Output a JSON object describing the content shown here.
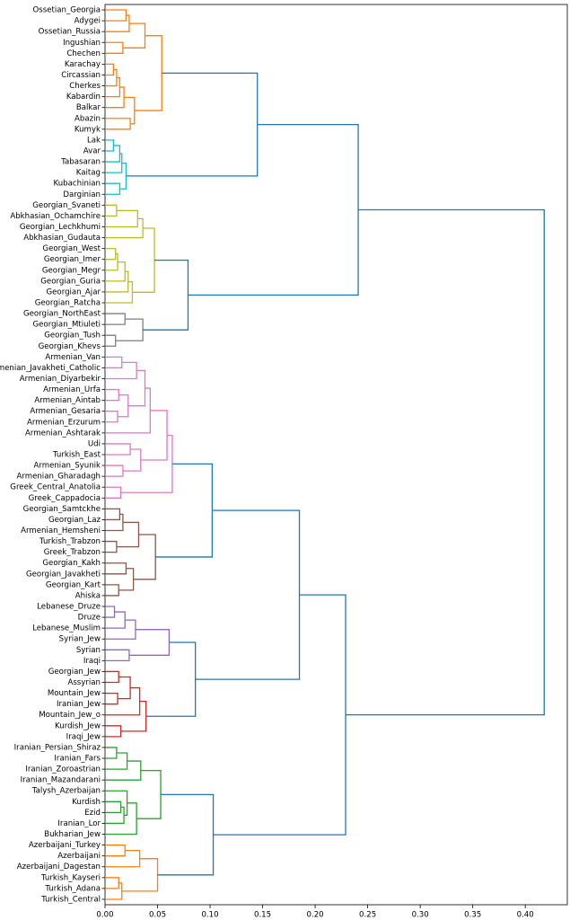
{
  "chart_data": {
    "type": "dendrogram",
    "orientation": "right",
    "xlim": [
      0,
      0.44
    ],
    "xticks": [
      {
        "value": 0,
        "label": "0.00"
      },
      {
        "value": 0.05,
        "label": "0.05"
      },
      {
        "value": 0.1,
        "label": "0.10"
      },
      {
        "value": 0.15,
        "label": "0.15"
      },
      {
        "value": 0.2,
        "label": "0.20"
      },
      {
        "value": 0.25,
        "label": "0.25"
      },
      {
        "value": 0.3,
        "label": "0.30"
      },
      {
        "value": 0.35,
        "label": "0.35"
      },
      {
        "value": 0.4,
        "label": "0.40"
      }
    ],
    "tree": {
      "height": 0.418,
      "color": "#1f77b4",
      "children": [
        {
          "height": 0.241,
          "children": [
            {
              "height": 0.145,
              "children": [
                {
                  "height": 0.054,
                  "color": "#ff7f0e",
                  "children": [
                    {
                      "height": 0.038,
                      "children": [
                        {
                          "height": 0.023,
                          "children": [
                            {
                              "height": 0.02,
                              "children": [
                                "Ossetian_Georgia",
                                "Adygei"
                              ]
                            },
                            "Ossetian_Russia"
                          ]
                        },
                        {
                          "height": 0.017,
                          "children": [
                            "Ingushian",
                            "Chechen"
                          ]
                        }
                      ]
                    },
                    {
                      "height": 0.028,
                      "children": [
                        {
                          "height": 0.018,
                          "children": [
                            {
                              "height": 0.014,
                              "children": [
                                {
                                  "height": 0.011,
                                  "children": [
                                    {
                                      "height": 0.008,
                                      "children": [
                                        "Karachay",
                                        "Circassian"
                                      ]
                                    },
                                    "Cherkes"
                                  ]
                                },
                                "Kabardin"
                              ]
                            },
                            "Balkar"
                          ]
                        },
                        {
                          "height": 0.024,
                          "children": [
                            "Abazin",
                            "Kumyk"
                          ]
                        }
                      ]
                    }
                  ]
                },
                {
                  "height": 0.02,
                  "color": "#17becf",
                  "children": [
                    {
                      "height": 0.016,
                      "children": [
                        {
                          "height": 0.014,
                          "children": [
                            {
                              "height": 0.008,
                              "children": [
                                "Lak",
                                "Avar"
                              ]
                            },
                            "Tabasaran"
                          ]
                        },
                        "Kaitag"
                      ]
                    },
                    {
                      "height": 0.014,
                      "children": [
                        "Kubachinian",
                        "Darginian"
                      ]
                    }
                  ]
                }
              ]
            },
            {
              "height": 0.079,
              "children": [
                {
                  "height": 0.047,
                  "color": "#bcbd22",
                  "children": [
                    {
                      "height": 0.036,
                      "children": [
                        {
                          "height": 0.031,
                          "children": [
                            {
                              "height": 0.011,
                              "children": [
                                "Georgian_Svaneti",
                                "Abkhasian_Ochamchire"
                              ]
                            },
                            "Georgian_Lechkhumi"
                          ]
                        },
                        "Abkhasian_Gudauta"
                      ]
                    },
                    {
                      "height": 0.026,
                      "children": [
                        {
                          "height": 0.022,
                          "children": [
                            {
                              "height": 0.019,
                              "children": [
                                {
                                  "height": 0.012,
                                  "children": [
                                    {
                                      "height": 0.01,
                                      "children": [
                                        "Georgian_West",
                                        "Georgian_Imer"
                                      ]
                                    },
                                    "Georgian_Megr"
                                  ]
                                },
                                "Georgian_Guria"
                              ]
                            },
                            "Georgian_Ajar"
                          ]
                        },
                        "Georgian_Ratcha"
                      ]
                    }
                  ]
                },
                {
                  "height": 0.036,
                  "color": "#7f7f7f",
                  "children": [
                    {
                      "height": 0.019,
                      "children": [
                        "Georgian_NorthEast",
                        "Georgian_Mtiuleti"
                      ]
                    },
                    {
                      "height": 0.01,
                      "children": [
                        "Georgian_Tush",
                        "Georgian_Khevs"
                      ]
                    }
                  ]
                }
              ]
            }
          ]
        },
        {
          "height": 0.229,
          "children": [
            {
              "height": 0.185,
              "children": [
                {
                  "height": 0.102,
                  "children": [
                    {
                      "height": 0.064,
                      "color": "#e377c2",
                      "children": [
                        {
                          "height": 0.059,
                          "children": [
                            {
                              "height": 0.043,
                              "children": [
                                {
                                  "height": 0.038,
                                  "children": [
                                    {
                                      "height": 0.03,
                                      "children": [
                                        {
                                          "height": 0.016,
                                          "children": [
                                            "Armenian_Van",
                                            "Armenian_Javakheti_Catholic"
                                          ]
                                        },
                                        "Armenian_Diyarbekir"
                                      ]
                                    },
                                    {
                                      "height": 0.022,
                                      "children": [
                                        {
                                          "height": 0.013,
                                          "children": [
                                            "Armenian_Urfa",
                                            "Armenian_Aintab"
                                          ]
                                        },
                                        {
                                          "height": 0.012,
                                          "children": [
                                            "Armenian_Gesaria",
                                            "Armenian_Erzurum"
                                          ]
                                        }
                                      ]
                                    }
                                  ]
                                },
                                "Armenian_Ashtarak"
                              ]
                            },
                            {
                              "height": 0.034,
                              "children": [
                                {
                                  "height": 0.024,
                                  "children": [
                                    "Udi",
                                    "Turkish_East"
                                  ]
                                },
                                {
                                  "height": 0.017,
                                  "children": [
                                    "Armenian_Syunik",
                                    "Armenian_Gharadagh"
                                  ]
                                }
                              ]
                            }
                          ]
                        },
                        {
                          "height": 0.015,
                          "children": [
                            "Greek_Central_Anatolia",
                            "Greek_Cappadocia"
                          ]
                        }
                      ]
                    },
                    {
                      "height": 0.048,
                      "color": "#8c564b",
                      "children": [
                        {
                          "height": 0.032,
                          "children": [
                            {
                              "height": 0.017,
                              "children": [
                                {
                                  "height": 0.014,
                                  "children": [
                                    "Georgian_Samtckhe",
                                    "Georgian_Laz"
                                  ]
                                },
                                "Armenian_Hemsheni"
                              ]
                            },
                            {
                              "height": 0.011,
                              "children": [
                                "Turkish_Trabzon",
                                "Greek_Trabzon"
                              ]
                            }
                          ]
                        },
                        {
                          "height": 0.027,
                          "children": [
                            {
                              "height": 0.02,
                              "children": [
                                "Georgian_Kakh",
                                "Georgian_Javakheti"
                              ]
                            },
                            {
                              "height": 0.013,
                              "children": [
                                "Georgian_Kart",
                                "Ahiska"
                              ]
                            }
                          ]
                        }
                      ]
                    }
                  ]
                },
                {
                  "height": 0.086,
                  "children": [
                    {
                      "height": 0.061,
                      "color": "#9467bd",
                      "children": [
                        {
                          "height": 0.029,
                          "children": [
                            {
                              "height": 0.019,
                              "children": [
                                {
                                  "height": 0.009,
                                  "children": [
                                    "Lebanese_Druze",
                                    "Druze"
                                  ]
                                },
                                "Lebanese_Muslim"
                              ]
                            },
                            "Syrian_Jew"
                          ]
                        },
                        {
                          "height": 0.023,
                          "children": [
                            "Syrian",
                            "Iraqi"
                          ]
                        }
                      ]
                    },
                    {
                      "height": 0.039,
                      "color": "#d62728",
                      "children": [
                        {
                          "height": 0.033,
                          "children": [
                            {
                              "height": 0.024,
                              "children": [
                                {
                                  "height": 0.013,
                                  "children": [
                                    "Georgian_Jew",
                                    "Assyrian"
                                  ]
                                },
                                {
                                  "height": 0.012,
                                  "children": [
                                    "Mountain_Jew",
                                    "Iranian_Jew"
                                  ]
                                }
                              ]
                            },
                            "Mountain_Jew_o"
                          ]
                        },
                        {
                          "height": 0.015,
                          "children": [
                            "Kurdish_Jew",
                            "Iraqi_Jew"
                          ]
                        }
                      ]
                    }
                  ]
                }
              ]
            },
            {
              "height": 0.103,
              "children": [
                {
                  "height": 0.053,
                  "color": "#2ca02c",
                  "children": [
                    {
                      "height": 0.034,
                      "children": [
                        {
                          "height": 0.021,
                          "children": [
                            {
                              "height": 0.011,
                              "children": [
                                "Iranian_Persian_Shiraz",
                                "Iranian_Fars"
                              ]
                            },
                            "Iranian_Zoroastrian"
                          ]
                        },
                        "Iranian_Mazandarani"
                      ]
                    },
                    {
                      "height": 0.03,
                      "children": [
                        {
                          "height": 0.021,
                          "children": [
                            "Talysh_Azerbaijan",
                            {
                              "height": 0.018,
                              "children": [
                                {
                                  "height": 0.015,
                                  "children": [
                                    "Kurdish",
                                    "Ezid"
                                  ]
                                },
                                "Iranian_Lor"
                              ]
                            }
                          ]
                        },
                        "Bukharian_Jew"
                      ]
                    }
                  ]
                },
                {
                  "height": 0.05,
                  "color": "#ff7f0e",
                  "children": [
                    {
                      "height": 0.033,
                      "children": [
                        {
                          "height": 0.019,
                          "children": [
                            "Azerbaijani_Turkey",
                            "Azerbaijani"
                          ]
                        },
                        "Azerbaijani_Dagestan"
                      ]
                    },
                    {
                      "height": 0.016,
                      "children": [
                        {
                          "height": 0.013,
                          "children": [
                            "Turkish_Kayseri",
                            "Turkish_Adana"
                          ]
                        },
                        "Turkish_Central"
                      ]
                    }
                  ]
                }
              ]
            }
          ]
        }
      ]
    }
  }
}
